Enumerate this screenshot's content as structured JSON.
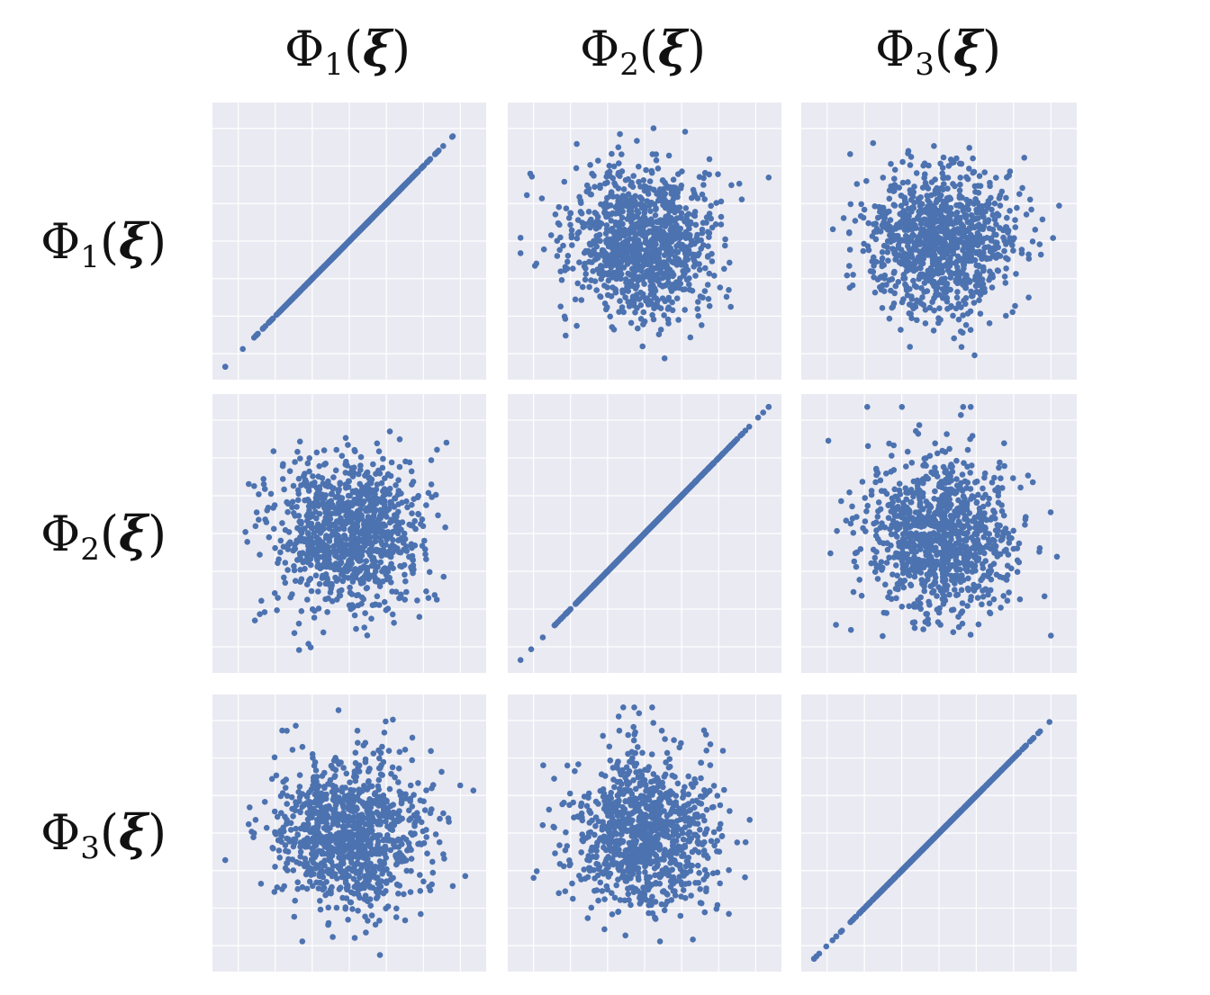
{
  "labels": {
    "columns": [
      {
        "symbol": "Φ",
        "sub": "1",
        "arg": "ξ"
      },
      {
        "symbol": "Φ",
        "sub": "2",
        "arg": "ξ"
      },
      {
        "symbol": "Φ",
        "sub": "3",
        "arg": "ξ"
      }
    ],
    "rows": [
      {
        "symbol": "Φ",
        "sub": "1",
        "arg": "ξ"
      },
      {
        "symbol": "Φ",
        "sub": "2",
        "arg": "ξ"
      },
      {
        "symbol": "Φ",
        "sub": "3",
        "arg": "ξ"
      }
    ]
  },
  "colors": {
    "marker": "#4c72b0",
    "axes_bg": "#eaeaf2",
    "grid": "#ffffff"
  },
  "chart_data": [
    {
      "type": "scatter",
      "row": 1,
      "col": 1,
      "relation": "identity",
      "n_points": 1000,
      "xlim": [
        -3.5,
        3.5
      ],
      "ylim": [
        -3.5,
        3.5
      ],
      "grid": true,
      "tick_labels": false
    },
    {
      "type": "scatter",
      "row": 1,
      "col": 2,
      "relation": "independent",
      "n_points": 1000,
      "xlim": [
        -3.5,
        3.5
      ],
      "ylim": [
        -3.5,
        3.5
      ],
      "grid": true,
      "tick_labels": false
    },
    {
      "type": "scatter",
      "row": 1,
      "col": 3,
      "relation": "independent",
      "n_points": 1000,
      "xlim": [
        -3.5,
        3.5
      ],
      "ylim": [
        -3.5,
        3.5
      ],
      "grid": true,
      "tick_labels": false
    },
    {
      "type": "scatter",
      "row": 2,
      "col": 1,
      "relation": "independent",
      "n_points": 1000,
      "xlim": [
        -3.5,
        3.5
      ],
      "ylim": [
        -3.5,
        3.5
      ],
      "grid": true,
      "tick_labels": false
    },
    {
      "type": "scatter",
      "row": 2,
      "col": 2,
      "relation": "identity",
      "n_points": 1000,
      "xlim": [
        -3.5,
        3.5
      ],
      "ylim": [
        -3.5,
        3.5
      ],
      "grid": true,
      "tick_labels": false
    },
    {
      "type": "scatter",
      "row": 2,
      "col": 3,
      "relation": "independent",
      "n_points": 1000,
      "xlim": [
        -3.5,
        3.5
      ],
      "ylim": [
        -3.5,
        3.5
      ],
      "grid": true,
      "tick_labels": false
    },
    {
      "type": "scatter",
      "row": 3,
      "col": 1,
      "relation": "independent",
      "n_points": 1000,
      "xlim": [
        -3.5,
        3.5
      ],
      "ylim": [
        -3.5,
        3.5
      ],
      "grid": true,
      "tick_labels": false
    },
    {
      "type": "scatter",
      "row": 3,
      "col": 2,
      "relation": "independent",
      "n_points": 1000,
      "xlim": [
        -3.5,
        3.5
      ],
      "ylim": [
        -3.5,
        3.5
      ],
      "grid": true,
      "tick_labels": false
    },
    {
      "type": "scatter",
      "row": 3,
      "col": 3,
      "relation": "identity",
      "n_points": 1000,
      "xlim": [
        -3.5,
        3.5
      ],
      "ylim": [
        -3.5,
        3.5
      ],
      "grid": true,
      "tick_labels": false
    }
  ]
}
